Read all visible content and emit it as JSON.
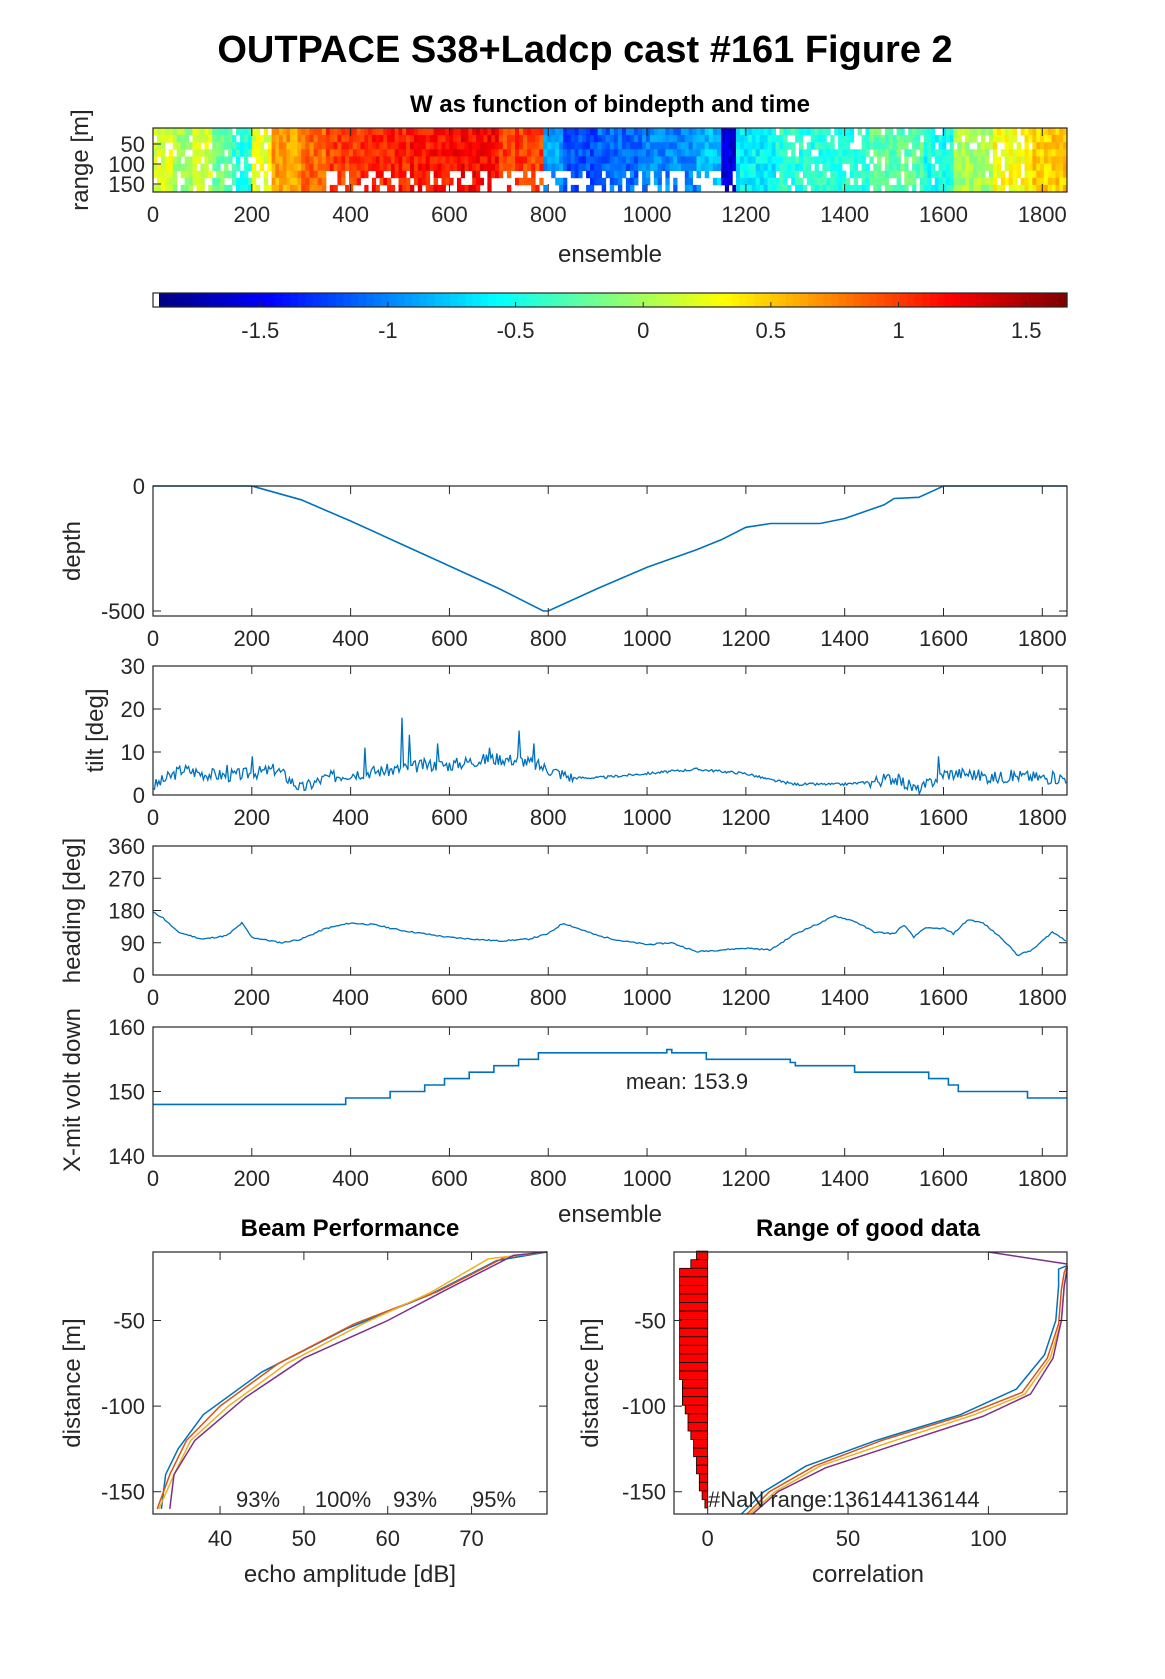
{
  "title": "OUTPACE S38+Ladcp cast #161 Figure 2",
  "colors": {
    "line": "#0072bd",
    "beam": [
      "#0072bd",
      "#d95319",
      "#edb120",
      "#7e2f8e"
    ],
    "bar": "#ff0000"
  },
  "chart_data": [
    {
      "id": "w-image",
      "type": "heatmap",
      "title": "W as function of bindepth and time",
      "xlabel": "ensemble",
      "ylabel": "range [m]",
      "xlim": [
        0,
        1850
      ],
      "ylim": [
        170,
        10
      ],
      "xticks": [
        "0",
        "200",
        "400",
        "600",
        "800",
        "1000",
        "1200",
        "1400",
        "1600",
        "1800"
      ],
      "yticks": [
        "50",
        "100",
        "150"
      ],
      "segments": [
        {
          "x0": 0,
          "x1": 40,
          "w": 0.2
        },
        {
          "x0": 40,
          "x1": 80,
          "w": 0.0
        },
        {
          "x0": 80,
          "x1": 120,
          "w": 0.15
        },
        {
          "x0": 120,
          "x1": 160,
          "w": -0.2
        },
        {
          "x0": 160,
          "x1": 200,
          "w": -0.45
        },
        {
          "x0": 200,
          "x1": 240,
          "w": 0.25
        },
        {
          "x0": 240,
          "x1": 300,
          "w": 0.65
        },
        {
          "x0": 300,
          "x1": 350,
          "w": 0.85
        },
        {
          "x0": 350,
          "x1": 420,
          "w": 1.0
        },
        {
          "x0": 420,
          "x1": 520,
          "w": 1.1
        },
        {
          "x0": 520,
          "x1": 600,
          "w": 1.15
        },
        {
          "x0": 600,
          "x1": 700,
          "w": 1.2
        },
        {
          "x0": 700,
          "x1": 790,
          "w": 1.0
        },
        {
          "x0": 790,
          "x1": 830,
          "w": -0.9
        },
        {
          "x0": 830,
          "x1": 900,
          "w": -1.2
        },
        {
          "x0": 900,
          "x1": 990,
          "w": -1.1
        },
        {
          "x0": 990,
          "x1": 1100,
          "w": -1.0
        },
        {
          "x0": 1100,
          "x1": 1150,
          "w": -0.8
        },
        {
          "x0": 1150,
          "x1": 1180,
          "w": -1.6
        },
        {
          "x0": 1180,
          "x1": 1260,
          "w": -0.6
        },
        {
          "x0": 1260,
          "x1": 1450,
          "w": -0.45
        },
        {
          "x0": 1450,
          "x1": 1560,
          "w": -0.25
        },
        {
          "x0": 1560,
          "x1": 1620,
          "w": -0.5
        },
        {
          "x0": 1620,
          "x1": 1700,
          "w": 0.0
        },
        {
          "x0": 1700,
          "x1": 1780,
          "w": 0.3
        },
        {
          "x0": 1780,
          "x1": 1850,
          "w": 0.5
        }
      ]
    },
    {
      "id": "colorbar",
      "type": "colorbar",
      "clim": [
        -1.92,
        1.66
      ],
      "ticks": [
        "-1.5",
        "-1",
        "-0.5",
        "0",
        "0.5",
        "1",
        "1.5"
      ],
      "tick_values": [
        -1.5,
        -1,
        -0.5,
        0,
        0.5,
        1,
        1.5
      ]
    },
    {
      "id": "depth",
      "type": "line",
      "ylabel": "depth",
      "xlim": [
        0,
        1850
      ],
      "ylim": [
        -520,
        0
      ],
      "xticks": [
        "0",
        "200",
        "400",
        "600",
        "800",
        "1000",
        "1200",
        "1400",
        "1600",
        "1800"
      ],
      "yticks": [
        "0",
        "-500"
      ],
      "ytick_values": [
        0,
        -500
      ],
      "x": [
        0,
        200,
        300,
        400,
        500,
        600,
        700,
        790,
        800,
        900,
        1000,
        1100,
        1150,
        1200,
        1250,
        1350,
        1400,
        1480,
        1500,
        1550,
        1600,
        1650,
        1850
      ],
      "y": [
        0,
        0,
        -55,
        -140,
        -230,
        -320,
        -410,
        -500,
        -500,
        -410,
        -325,
        -255,
        -215,
        -165,
        -150,
        -150,
        -130,
        -75,
        -50,
        -45,
        0,
        0,
        0
      ]
    },
    {
      "id": "tilt",
      "type": "line",
      "ylabel": "tilt [deg]",
      "xlim": [
        0,
        1850
      ],
      "ylim": [
        0,
        30
      ],
      "xticks": [
        "0",
        "200",
        "400",
        "600",
        "800",
        "1000",
        "1200",
        "1400",
        "1600",
        "1800"
      ],
      "yticks": [
        "0",
        "10",
        "20",
        "30"
      ],
      "ytick_values": [
        0,
        10,
        20,
        30
      ],
      "x": [
        0,
        60,
        100,
        150,
        200,
        250,
        300,
        350,
        400,
        450,
        500,
        550,
        600,
        650,
        700,
        750,
        800,
        850,
        900,
        1000,
        1100,
        1200,
        1250,
        1300,
        1400,
        1450,
        1500,
        1550,
        1600,
        1650,
        1700,
        1750,
        1800,
        1850
      ],
      "y": [
        2,
        6,
        5,
        4.5,
        5,
        6,
        1.5,
        4,
        5,
        5.5,
        6,
        7,
        7,
        8,
        8.5,
        8,
        6,
        4,
        4,
        5,
        6,
        5,
        3.5,
        2.5,
        2.5,
        3,
        4,
        1,
        5,
        5,
        4,
        4.5,
        4,
        4
      ],
      "spikes": [
        {
          "x": 430,
          "y": 11
        },
        {
          "x": 505,
          "y": 18
        },
        {
          "x": 520,
          "y": 14
        },
        {
          "x": 575,
          "y": 12
        },
        {
          "x": 680,
          "y": 11
        },
        {
          "x": 740,
          "y": 15
        },
        {
          "x": 770,
          "y": 12
        },
        {
          "x": 1590,
          "y": 9
        },
        {
          "x": 150,
          "y": 7
        },
        {
          "x": 200,
          "y": 9
        }
      ]
    },
    {
      "id": "heading",
      "type": "line",
      "ylabel": "heading [deg]",
      "xlim": [
        0,
        1850
      ],
      "ylim": [
        0,
        360
      ],
      "xticks": [
        "0",
        "200",
        "400",
        "600",
        "800",
        "1000",
        "1200",
        "1400",
        "1600",
        "1800"
      ],
      "yticks": [
        "0",
        "90",
        "180",
        "270",
        "360"
      ],
      "ytick_values": [
        0,
        90,
        180,
        270,
        360
      ],
      "x": [
        0,
        20,
        50,
        100,
        150,
        180,
        200,
        260,
        300,
        350,
        400,
        450,
        500,
        600,
        700,
        760,
        800,
        830,
        860,
        900,
        950,
        1000,
        1050,
        1100,
        1150,
        1200,
        1250,
        1300,
        1350,
        1380,
        1420,
        1460,
        1500,
        1520,
        1540,
        1560,
        1600,
        1620,
        1650,
        1680,
        1720,
        1750,
        1780,
        1820,
        1850
      ],
      "y": [
        175,
        160,
        120,
        100,
        110,
        145,
        105,
        90,
        100,
        130,
        145,
        140,
        125,
        105,
        95,
        100,
        115,
        145,
        130,
        110,
        95,
        85,
        90,
        65,
        70,
        75,
        70,
        115,
        145,
        165,
        150,
        120,
        115,
        140,
        105,
        130,
        130,
        115,
        155,
        145,
        100,
        55,
        70,
        120,
        95
      ]
    },
    {
      "id": "xmit-volt",
      "type": "line",
      "xlabel": "ensemble",
      "ylabel": "X-mit volt down",
      "annotation": "mean: 153.9",
      "xlim": [
        0,
        1850
      ],
      "ylim": [
        140,
        160
      ],
      "xticks": [
        "0",
        "200",
        "400",
        "600",
        "800",
        "1000",
        "1200",
        "1400",
        "1600",
        "1800"
      ],
      "yticks": [
        "140",
        "150",
        "160"
      ],
      "ytick_values": [
        140,
        150,
        160
      ],
      "x": [
        0,
        390,
        390,
        480,
        480,
        550,
        550,
        590,
        590,
        640,
        640,
        690,
        690,
        740,
        740,
        780,
        780,
        1040,
        1040,
        1050,
        1050,
        1120,
        1120,
        1290,
        1290,
        1300,
        1300,
        1310,
        1310,
        1420,
        1420,
        1570,
        1570,
        1610,
        1610,
        1630,
        1630,
        1770,
        1770,
        1850
      ],
      "y": [
        148,
        148,
        149,
        149,
        150,
        150,
        151,
        151,
        152,
        152,
        153,
        153,
        154,
        154,
        155,
        155,
        156,
        156,
        156.5,
        156.5,
        156,
        156,
        155,
        155,
        154.5,
        154.5,
        154,
        154,
        154,
        154,
        153,
        153,
        152,
        152,
        151,
        151,
        150,
        150,
        149,
        149
      ]
    },
    {
      "id": "beam-performance",
      "type": "line",
      "title": "Beam Performance",
      "xlabel": "echo amplitude [dB]",
      "ylabel": "distance [m]",
      "xlim": [
        32,
        79
      ],
      "ylim": [
        -163,
        -10
      ],
      "xticks": [
        "40",
        "50",
        "60",
        "70"
      ],
      "xtick_values": [
        40,
        50,
        60,
        70
      ],
      "yticks": [
        "-50",
        "-100",
        "-150"
      ],
      "ytick_values": [
        -50,
        -100,
        -150
      ],
      "annotations": [
        "93%",
        "100%",
        "93%",
        "95%"
      ],
      "series": [
        {
          "x": [
            33,
            33.5,
            35,
            38,
            45,
            55,
            65,
            73,
            79
          ],
          "y": [
            -160,
            -140,
            -125,
            -105,
            -80,
            -55,
            -35,
            -15,
            -10
          ]
        },
        {
          "x": [
            32.5,
            34,
            36,
            40,
            47,
            56,
            66,
            74,
            79
          ],
          "y": [
            -160,
            -140,
            -120,
            -100,
            -75,
            -52,
            -33,
            -13,
            -10
          ]
        },
        {
          "x": [
            32.7,
            34.5,
            36.5,
            41,
            48,
            57,
            65,
            72,
            79
          ],
          "y": [
            -160,
            -140,
            -120,
            -100,
            -75,
            -52,
            -34,
            -14,
            -10
          ]
        },
        {
          "x": [
            34,
            34.5,
            37,
            43,
            50,
            60,
            67,
            75,
            79
          ],
          "y": [
            -160,
            -140,
            -120,
            -95,
            -72,
            -50,
            -32,
            -12,
            -10
          ]
        }
      ]
    },
    {
      "id": "range-good-data",
      "type": "bar",
      "title": "Range of good data",
      "xlabel": "correlation",
      "ylabel": "distance [m]",
      "annotation": "#NaN range:136144136144",
      "xlim": [
        -12,
        128
      ],
      "ylim": [
        -163,
        -10
      ],
      "xticks": [
        "0",
        "50",
        "100"
      ],
      "xtick_values": [
        0,
        50,
        100
      ],
      "yticks": [
        "-50",
        "-100",
        "-150"
      ],
      "ytick_values": [
        -50,
        -100,
        -150
      ],
      "bars": [
        {
          "y": -12,
          "v": 4
        },
        {
          "y": -17,
          "v": 6
        },
        {
          "y": -22,
          "v": 10
        },
        {
          "y": -27,
          "v": 10
        },
        {
          "y": -32,
          "v": 10
        },
        {
          "y": -37,
          "v": 10
        },
        {
          "y": -42,
          "v": 10
        },
        {
          "y": -47,
          "v": 10
        },
        {
          "y": -52,
          "v": 10
        },
        {
          "y": -57,
          "v": 10
        },
        {
          "y": -62,
          "v": 10
        },
        {
          "y": -67,
          "v": 10
        },
        {
          "y": -72,
          "v": 10
        },
        {
          "y": -77,
          "v": 10
        },
        {
          "y": -82,
          "v": 10
        },
        {
          "y": -87,
          "v": 9
        },
        {
          "y": -92,
          "v": 9
        },
        {
          "y": -97,
          "v": 9
        },
        {
          "y": -102,
          "v": 8
        },
        {
          "y": -107,
          "v": 7
        },
        {
          "y": -112,
          "v": 7
        },
        {
          "y": -117,
          "v": 6
        },
        {
          "y": -122,
          "v": 5
        },
        {
          "y": -127,
          "v": 5
        },
        {
          "y": -132,
          "v": 4
        },
        {
          "y": -137,
          "v": 4
        },
        {
          "y": -142,
          "v": 3
        },
        {
          "y": -147,
          "v": 3
        },
        {
          "y": -152,
          "v": 2
        },
        {
          "y": -157,
          "v": 1
        }
      ],
      "series": [
        {
          "x": [
            12,
            20,
            35,
            60,
            90,
            110,
            120,
            124,
            125,
            125,
            128
          ],
          "y": [
            -163,
            -150,
            -135,
            -120,
            -105,
            -90,
            -70,
            -50,
            -30,
            -20,
            -18
          ]
        },
        {
          "x": [
            14,
            22,
            38,
            62,
            92,
            112,
            121,
            125,
            126,
            127,
            128
          ],
          "y": [
            -163,
            -150,
            -135,
            -120,
            -105,
            -92,
            -72,
            -52,
            -32,
            -22,
            -18
          ]
        },
        {
          "x": [
            15,
            24,
            40,
            65,
            95,
            113,
            122,
            126,
            127,
            128,
            128
          ],
          "y": [
            -163,
            -150,
            -135,
            -121,
            -105,
            -93,
            -72,
            -50,
            -30,
            -20,
            -18
          ]
        },
        {
          "x": [
            16,
            25,
            42,
            68,
            98,
            115,
            123,
            126,
            127,
            128,
            128
          ],
          "y": [
            -163,
            -150,
            -136,
            -122,
            -106,
            -93,
            -72,
            -50,
            -30,
            -20,
            -18
          ]
        }
      ],
      "top_series": {
        "x": [
          100,
          128
        ],
        "y": [
          -10,
          -17
        ]
      }
    }
  ]
}
